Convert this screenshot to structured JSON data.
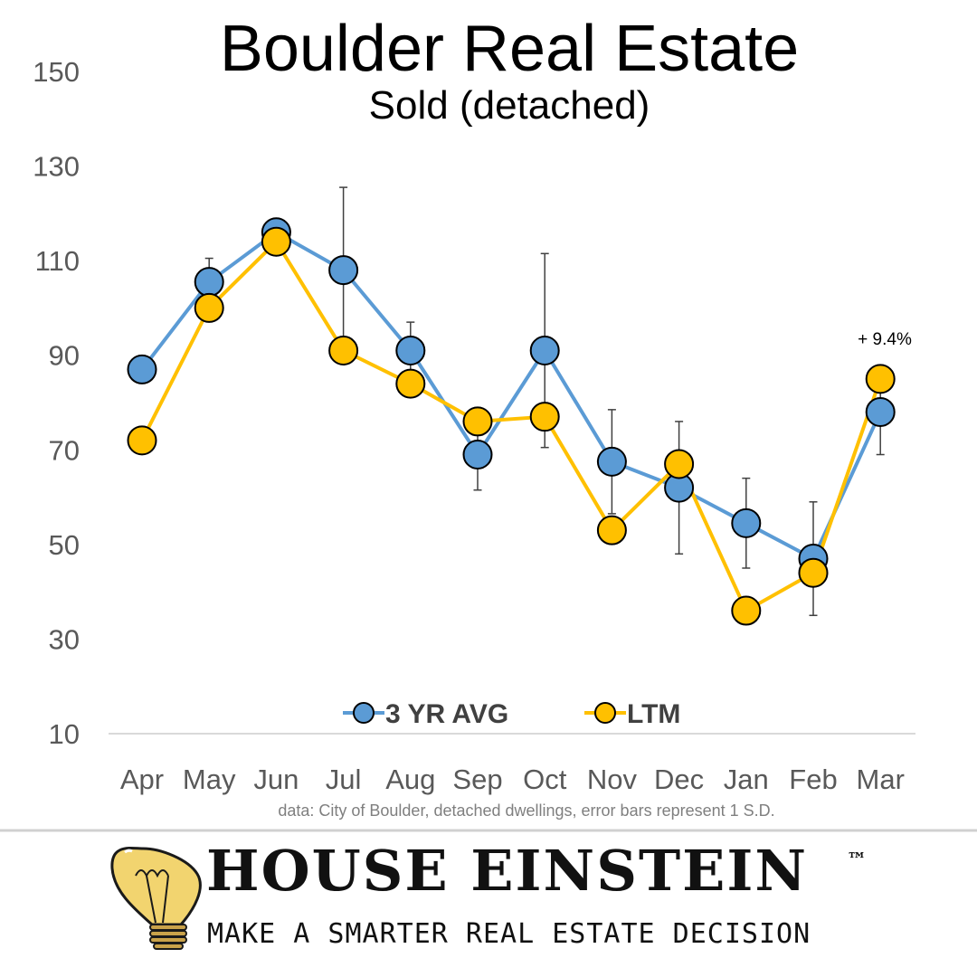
{
  "chart_data": {
    "type": "line",
    "title": "Boulder Real Estate",
    "subtitle": "Sold (detached)",
    "categories": [
      "Apr",
      "May",
      "Jun",
      "Jul",
      "Aug",
      "Sep",
      "Oct",
      "Nov",
      "Dec",
      "Jan",
      "Feb",
      "Mar"
    ],
    "ylim": [
      10,
      150
    ],
    "yticks": [
      "150",
      "130",
      "110",
      "90",
      "70",
      "50",
      "30",
      "10"
    ],
    "grid": false,
    "legend_position": "bottom-center",
    "series": [
      {
        "name": "3 YR AVG",
        "color": "#5b9bd5",
        "values": [
          87,
          105.5,
          116,
          108,
          91,
          69,
          91,
          67.5,
          62,
          54.5,
          47,
          78
        ],
        "error_bars": [
          null,
          5,
          null,
          17.5,
          6,
          7.5,
          20.5,
          11,
          14,
          9.5,
          12,
          9
        ]
      },
      {
        "name": "LTM",
        "color": "#ffc000",
        "values": [
          72,
          100,
          114,
          91,
          84,
          76,
          77,
          53,
          67,
          36,
          44,
          85
        ]
      }
    ],
    "annotation": "+ 9.4%",
    "note": "data: City of Boulder, detached dwellings, error bars represent 1 S.D."
  },
  "brand": {
    "name": "HOUSE EINSTEIN",
    "trademark": "™",
    "tagline": "MAKE A SMARTER REAL ESTATE DECISION",
    "logo_icon": "lightbulb-icon"
  }
}
